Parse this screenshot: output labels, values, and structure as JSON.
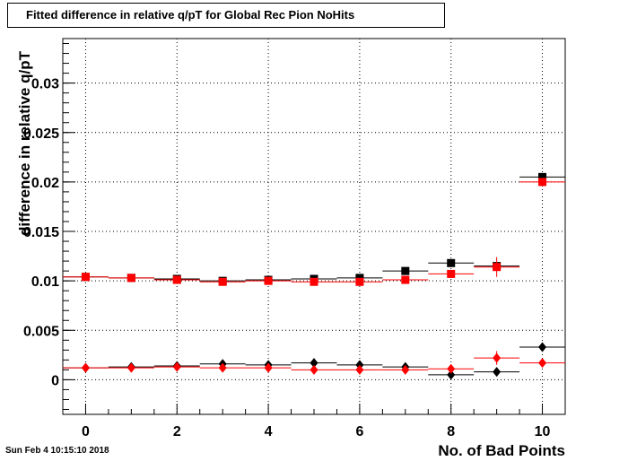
{
  "footer": {
    "timestamp": "Sun Feb  4 10:15:10 2018"
  },
  "chart_data": {
    "type": "scatter",
    "title": "Fitted difference in relative q/pT for Global Rec Pion NoHits",
    "xlabel": "No. of Bad Points",
    "ylabel": "difference in relative q/pT",
    "xlim": [
      -0.5,
      10.5
    ],
    "ylim": [
      -0.0035,
      0.0345
    ],
    "xticks": [
      0,
      2,
      4,
      6,
      8,
      10
    ],
    "xtick_labels": [
      "0",
      "2",
      "4",
      "6",
      "8",
      "10"
    ],
    "yticks": [
      0,
      0.005,
      0.01,
      0.015,
      0.02,
      0.025,
      0.03
    ],
    "ytick_labels": [
      "0",
      "0.005",
      "0.01",
      "0.015",
      "0.02",
      "0.025",
      "0.03"
    ],
    "grid": true,
    "x": [
      0,
      1,
      2,
      3,
      4,
      5,
      6,
      7,
      8,
      9,
      10
    ],
    "series": [
      {
        "marker": "square",
        "color": "#000000",
        "values": [
          0.0104,
          0.0103,
          0.0102,
          0.01,
          0.0101,
          0.0102,
          0.0103,
          0.011,
          0.0118,
          0.0115,
          0.0205
        ],
        "errors": [
          0.0001,
          0.0001,
          0.0001,
          0.0001,
          0.0001,
          0.0002,
          0.0002,
          0.0003,
          0.0003,
          0.0004,
          0.0003
        ]
      },
      {
        "marker": "square",
        "color": "#ff0000",
        "values": [
          0.0104,
          0.0103,
          0.0101,
          0.0099,
          0.01,
          0.0099,
          0.0099,
          0.0101,
          0.0107,
          0.0114,
          0.02
        ],
        "errors": [
          0.0001,
          0.0001,
          0.0001,
          0.0001,
          0.0001,
          0.0002,
          0.0002,
          0.0003,
          0.0003,
          0.001,
          0.0003
        ]
      },
      {
        "marker": "diamond",
        "color": "#000000",
        "values": [
          0.0012,
          0.0013,
          0.0014,
          0.0016,
          0.0015,
          0.0017,
          0.0015,
          0.0013,
          0.0005,
          0.0008,
          0.0033
        ],
        "errors": [
          0.0001,
          0.0001,
          0.0001,
          0.0001,
          0.0001,
          0.0002,
          0.0002,
          0.0002,
          0.0003,
          0.0004,
          0.0003
        ]
      },
      {
        "marker": "diamond",
        "color": "#ff0000",
        "values": [
          0.0012,
          0.0012,
          0.0013,
          0.0012,
          0.0012,
          0.001,
          0.001,
          0.001,
          0.0011,
          0.0022,
          0.0017
        ],
        "errors": [
          0.0001,
          0.0001,
          0.0001,
          0.0001,
          0.0001,
          0.0001,
          0.0002,
          0.0002,
          0.0002,
          0.0007,
          0.0002
        ]
      }
    ]
  }
}
